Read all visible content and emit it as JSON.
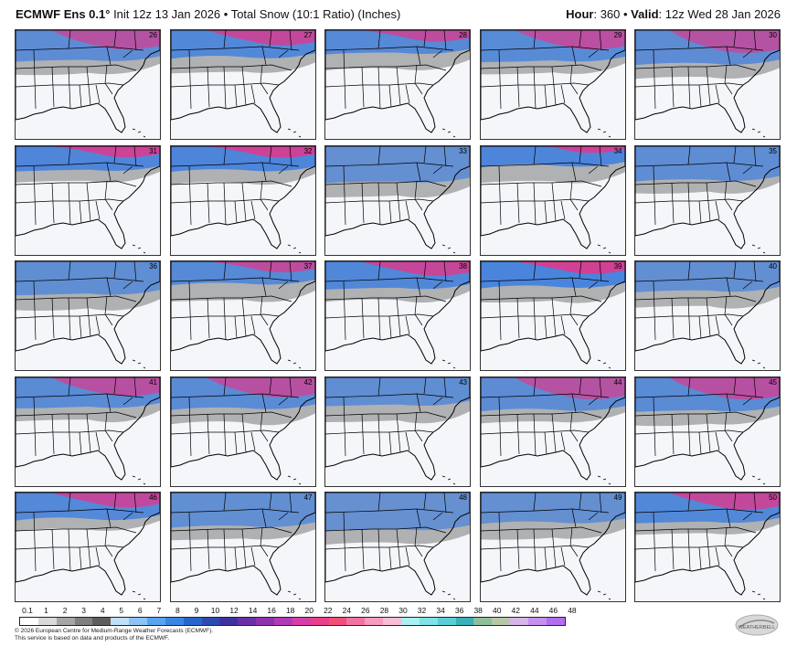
{
  "header": {
    "model": "ECMWF Ens 0.1°",
    "subtitle": "Init 12z 13 Jan 2026 • Total Snow (10:1 Ratio) (Inches)",
    "hour_label": "Hour",
    "hour_value": ": 360 • ",
    "valid_label": "Valid",
    "valid_value": ": 12z Wed 28 Jan 2026"
  },
  "panels": [
    {
      "member": "26",
      "intensity": 0.55
    },
    {
      "member": "31",
      "intensity": 0.9
    },
    {
      "member": "36",
      "intensity": 0.45
    },
    {
      "member": "41",
      "intensity": 0.6
    },
    {
      "member": "46",
      "intensity": 0.75
    },
    {
      "member": "27",
      "intensity": 0.8
    },
    {
      "member": "32",
      "intensity": 0.95
    },
    {
      "member": "37",
      "intensity": 0.7
    },
    {
      "member": "42",
      "intensity": 0.6
    },
    {
      "member": "47",
      "intensity": 0.4
    },
    {
      "member": "28",
      "intensity": 0.7
    },
    {
      "member": "33",
      "intensity": 0.35
    },
    {
      "member": "38",
      "intensity": 0.85
    },
    {
      "member": "43",
      "intensity": 0.45
    },
    {
      "member": "48",
      "intensity": 0.3
    },
    {
      "member": "29",
      "intensity": 0.65
    },
    {
      "member": "34",
      "intensity": 0.95
    },
    {
      "member": "39",
      "intensity": 1.0
    },
    {
      "member": "44",
      "intensity": 0.55
    },
    {
      "member": "49",
      "intensity": 0.35
    },
    {
      "member": "30",
      "intensity": 0.55
    },
    {
      "member": "35",
      "intensity": 0.5
    },
    {
      "member": "40",
      "intensity": 0.4
    },
    {
      "member": "45",
      "intensity": 0.6
    },
    {
      "member": "50",
      "intensity": 0.8
    }
  ],
  "scale": {
    "ticks": [
      "0.1",
      "1",
      "2",
      "3",
      "4",
      "5",
      "6",
      "7",
      "8",
      "9",
      "10",
      "12",
      "14",
      "16",
      "18",
      "20",
      "22",
      "24",
      "26",
      "28",
      "30",
      "32",
      "34",
      "36",
      "38",
      "40",
      "42",
      "44",
      "46",
      "48"
    ],
    "colors": [
      "#ffffff",
      "#d9d9d9",
      "#a6a6a6",
      "#808080",
      "#5e5e5e",
      "#bfe0fb",
      "#8cc4f7",
      "#5aa3ef",
      "#3a86e3",
      "#2766cc",
      "#2c4ab0",
      "#3c33a0",
      "#6a2fa8",
      "#8e33ae",
      "#b13bb5",
      "#d63fa8",
      "#ea3f8c",
      "#f14f7a",
      "#f472a3",
      "#f59ac1",
      "#f7bcd6",
      "#a8f0f2",
      "#7fe3e7",
      "#57cfd6",
      "#3ab0bb",
      "#8fbf9a",
      "#b7c8a8",
      "#d6b6e8",
      "#c690ee",
      "#b56cf0"
    ]
  },
  "footer": {
    "line1": "© 2026 European Centre for Medium-Range Weather Forecasts (ECMWF).",
    "line2": "This service is based on data and products of the ECMWF."
  },
  "logo": {
    "text": "WEATHERBELL"
  }
}
